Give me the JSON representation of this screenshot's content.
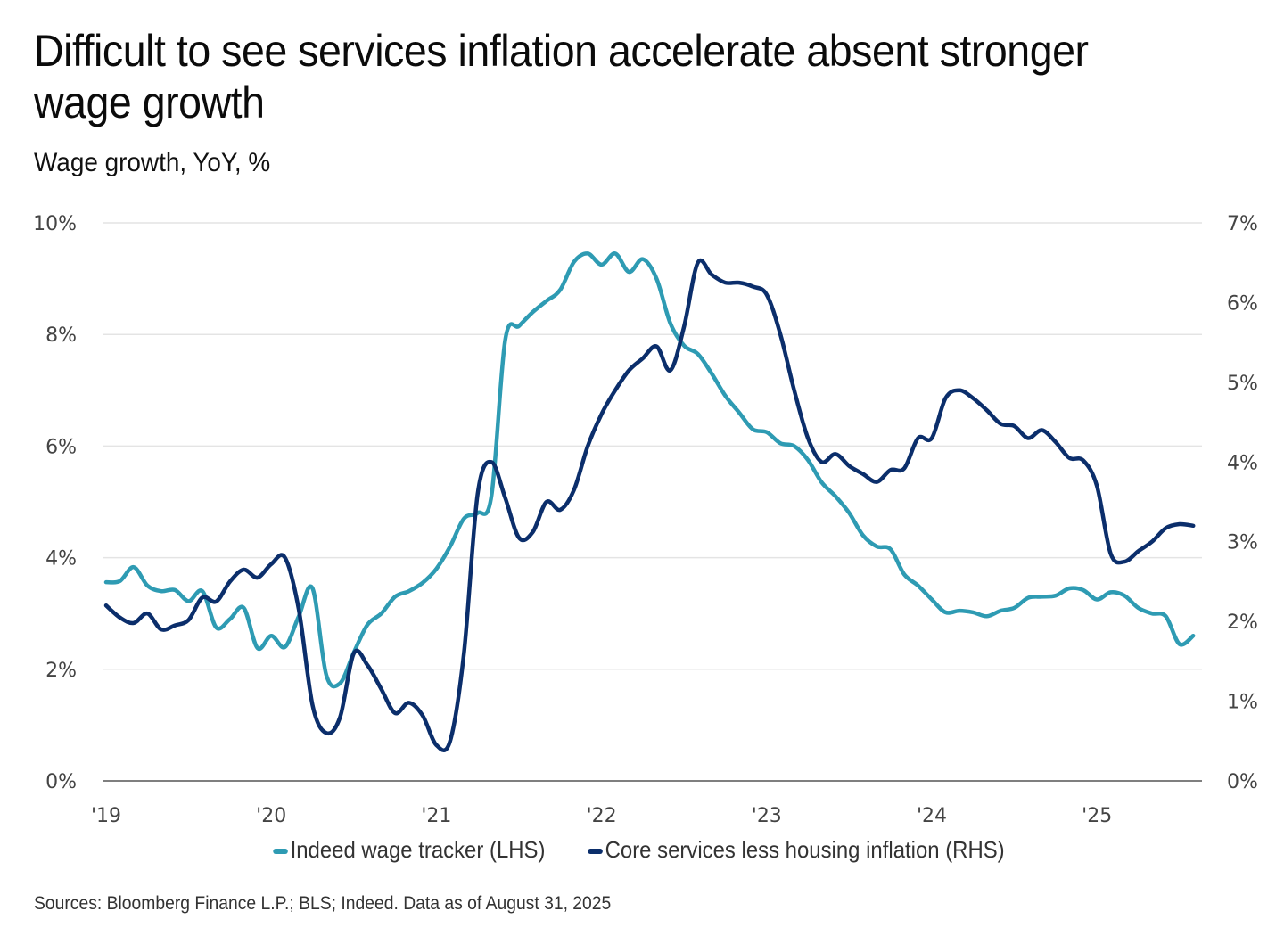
{
  "title": "Difficult to see services inflation accelerate absent stronger wage growth",
  "subtitle": "Wage growth, YoY, %",
  "source": "Sources: Bloomberg Finance L.P.; BLS; Indeed. Data as of August 31, 2025",
  "colors": {
    "indeed": "#2e9bb3",
    "core": "#0b2e6b",
    "grid": "#e4e4e4",
    "axis": "#555555"
  },
  "chart_data": {
    "type": "line",
    "title": "Difficult to see services inflation accelerate absent stronger wage growth",
    "subtitle": "Wage growth, YoY, %",
    "xlabel": "",
    "x_ticks": [
      "'19",
      "'20",
      "'21",
      "'22",
      "'23",
      "'24",
      "'25"
    ],
    "x_start": "2019-01",
    "x_frequency": "monthly",
    "y_left": {
      "label": "LHS",
      "ylim": [
        0,
        10
      ],
      "ticks": [
        "0%",
        "2%",
        "4%",
        "6%",
        "8%",
        "10%"
      ],
      "tick_values": [
        0,
        2,
        4,
        6,
        8,
        10
      ]
    },
    "y_right": {
      "label": "RHS",
      "ylim": [
        0,
        7
      ],
      "ticks": [
        "0%",
        "1%",
        "2%",
        "3%",
        "4%",
        "5%",
        "6%",
        "7%"
      ],
      "tick_values": [
        0,
        1,
        2,
        3,
        4,
        5,
        6,
        7
      ]
    },
    "grid": true,
    "legend_position": "bottom",
    "series": [
      {
        "name": "Indeed wage tracker (LHS)",
        "axis": "left",
        "values": [
          3.56,
          3.58,
          3.83,
          3.5,
          3.4,
          3.42,
          3.22,
          3.4,
          2.75,
          2.9,
          3.1,
          2.38,
          2.6,
          2.4,
          2.95,
          3.45,
          1.9,
          1.75,
          2.3,
          2.8,
          3.0,
          3.3,
          3.4,
          3.55,
          3.8,
          4.2,
          4.7,
          4.8,
          5.1,
          7.9,
          8.15,
          8.4,
          8.6,
          8.8,
          9.3,
          9.45,
          9.25,
          9.45,
          9.12,
          9.35,
          9.0,
          8.2,
          7.8,
          7.65,
          7.3,
          6.9,
          6.6,
          6.3,
          6.25,
          6.05,
          6.0,
          5.75,
          5.35,
          5.1,
          4.8,
          4.4,
          4.2,
          4.15,
          3.7,
          3.5,
          3.25,
          3.02,
          3.05,
          3.02,
          2.95,
          3.05,
          3.1,
          3.28,
          3.3,
          3.32,
          3.45,
          3.42,
          3.25,
          3.38,
          3.32,
          3.1,
          3.0,
          2.95,
          2.45,
          2.6
        ]
      },
      {
        "name": "Core services less housing inflation (RHS)",
        "axis": "right",
        "values": [
          2.2,
          2.05,
          1.98,
          2.1,
          1.9,
          1.95,
          2.02,
          2.3,
          2.25,
          2.5,
          2.65,
          2.55,
          2.72,
          2.8,
          2.15,
          0.95,
          0.6,
          0.8,
          1.6,
          1.45,
          1.15,
          0.85,
          0.98,
          0.82,
          0.45,
          0.5,
          1.6,
          3.6,
          4.0,
          3.55,
          3.05,
          3.12,
          3.5,
          3.4,
          3.65,
          4.2,
          4.6,
          4.9,
          5.15,
          5.3,
          5.45,
          5.15,
          5.7,
          6.5,
          6.35,
          6.25,
          6.25,
          6.2,
          6.1,
          5.6,
          4.9,
          4.3,
          4.0,
          4.1,
          3.95,
          3.85,
          3.75,
          3.9,
          3.92,
          4.3,
          4.3,
          4.8,
          4.9,
          4.8,
          4.65,
          4.48,
          4.45,
          4.3,
          4.4,
          4.25,
          4.05,
          4.02,
          3.7,
          2.85,
          2.75,
          2.88,
          3.0,
          3.17,
          3.22,
          3.2
        ]
      }
    ]
  }
}
